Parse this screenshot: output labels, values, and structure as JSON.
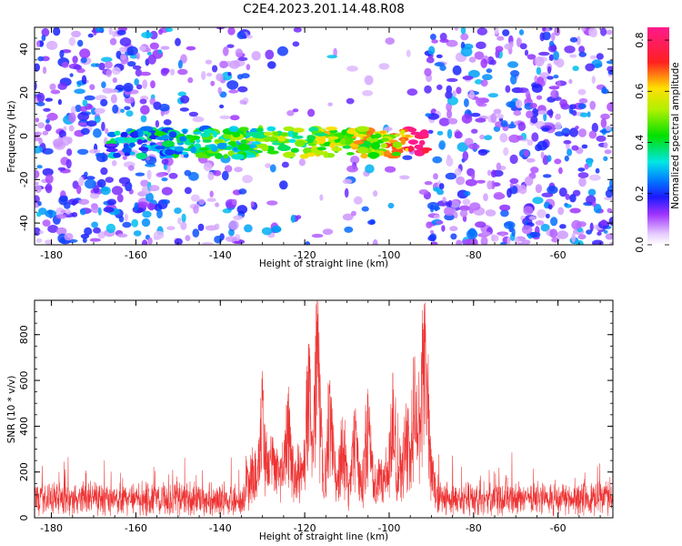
{
  "figure": {
    "title": "C2E4.2023.201.14.48.R08"
  },
  "chart_data": [
    {
      "type": "heatmap",
      "xlabel": "Height of straight line (km)",
      "ylabel": "Frequency (Hz)",
      "xlim": [
        -184,
        -47
      ],
      "ylim": [
        -50,
        50
      ],
      "x_ticks": [
        -180,
        -160,
        -140,
        -120,
        -100,
        -80,
        -60
      ],
      "y_ticks": [
        -40,
        -20,
        0,
        20,
        40
      ],
      "colormap": "rainbow (white at 0, violet/blue low, green/yellow mid, red/magenta high)",
      "colorbar": {
        "label": "Normalized spectral amplitude",
        "range": [
          0,
          0.85
        ],
        "ticks": [
          0.0,
          0.2,
          0.4,
          0.6,
          0.8
        ]
      },
      "features": {
        "signal_band_frequency_hz": [
          -8,
          2
        ],
        "signal_band_height_km": [
          -166,
          -91
        ],
        "peak_amplitude": 0.85,
        "peak_height_km": -93,
        "peak_frequency_hz": -5,
        "noise_amplitude": [
          0.05,
          0.3
        ],
        "quiet_region_height_km": [
          -134,
          -91
        ]
      }
    },
    {
      "type": "line",
      "xlabel": "Height of straight line (km)",
      "ylabel": "SNR (10 * v/v)",
      "xlim": [
        -184,
        -47
      ],
      "ylim": [
        0,
        950
      ],
      "x_ticks": [
        -180,
        -160,
        -140,
        -120,
        -100,
        -80,
        -60
      ],
      "y_ticks": [
        0,
        200,
        400,
        600,
        800
      ],
      "series": [
        {
          "color": "#ee3333",
          "baseline": 120,
          "peaks": [
            {
              "x": -130,
              "y": 590
            },
            {
              "x": -124,
              "y": 510
            },
            {
              "x": -119,
              "y": 760
            },
            {
              "x": -117,
              "y": 890
            },
            {
              "x": -114,
              "y": 600
            },
            {
              "x": -111,
              "y": 440
            },
            {
              "x": -108,
              "y": 460
            },
            {
              "x": -105,
              "y": 540
            },
            {
              "x": -99,
              "y": 560
            },
            {
              "x": -96,
              "y": 500
            },
            {
              "x": -94,
              "y": 690
            },
            {
              "x": -92,
              "y": 850
            },
            {
              "x": -91.5,
              "y": 940
            },
            {
              "x": -90.5,
              "y": 320
            }
          ]
        }
      ]
    }
  ]
}
